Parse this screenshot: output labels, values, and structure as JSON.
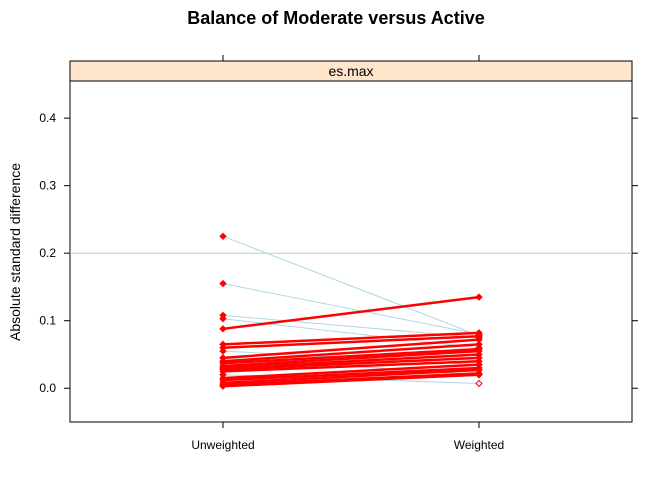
{
  "chart_data": {
    "type": "line",
    "title": "Balance of Moderate versus Active",
    "panel": "es.max",
    "ylabel": "Absolute standard difference",
    "xlabel": "",
    "categories": [
      "Unweighted",
      "Weighted"
    ],
    "ylim": [
      -0.05,
      0.455
    ],
    "yticks": [
      "0.0",
      "0.1",
      "0.2",
      "0.3",
      "0.4"
    ],
    "reference_line": 0.2,
    "colors": {
      "significant": "#ff0000",
      "nonsignificant": "#add8e6",
      "strip_fill": "#ffe5cc",
      "reference": "#c8c8c8"
    },
    "series": [
      {
        "values": [
          0.225,
          0.078
        ],
        "significant": false
      },
      {
        "values": [
          0.155,
          0.08
        ],
        "significant": false
      },
      {
        "values": [
          0.108,
          0.075
        ],
        "significant": false
      },
      {
        "values": [
          0.103,
          0.06
        ],
        "significant": false
      },
      {
        "values": [
          0.055,
          0.035
        ],
        "significant": false
      },
      {
        "values": [
          0.045,
          0.02
        ],
        "significant": false
      },
      {
        "values": [
          0.02,
          0.007
        ],
        "significant": false
      },
      {
        "values": [
          0.088,
          0.135
        ],
        "significant": true
      },
      {
        "values": [
          0.065,
          0.082
        ],
        "significant": true
      },
      {
        "values": [
          0.06,
          0.077
        ],
        "significant": true
      },
      {
        "values": [
          0.045,
          0.072
        ],
        "significant": true
      },
      {
        "values": [
          0.04,
          0.065
        ],
        "significant": true
      },
      {
        "values": [
          0.037,
          0.058
        ],
        "significant": true
      },
      {
        "values": [
          0.033,
          0.055
        ],
        "significant": true
      },
      {
        "values": [
          0.03,
          0.05
        ],
        "significant": true
      },
      {
        "values": [
          0.028,
          0.045
        ],
        "significant": true
      },
      {
        "values": [
          0.025,
          0.04
        ],
        "significant": true
      },
      {
        "values": [
          0.015,
          0.035
        ],
        "significant": true
      },
      {
        "values": [
          0.012,
          0.03
        ],
        "significant": true
      },
      {
        "values": [
          0.008,
          0.027
        ],
        "significant": true
      },
      {
        "values": [
          0.005,
          0.022
        ],
        "significant": true
      },
      {
        "values": [
          0.003,
          0.02
        ],
        "significant": true
      }
    ]
  }
}
